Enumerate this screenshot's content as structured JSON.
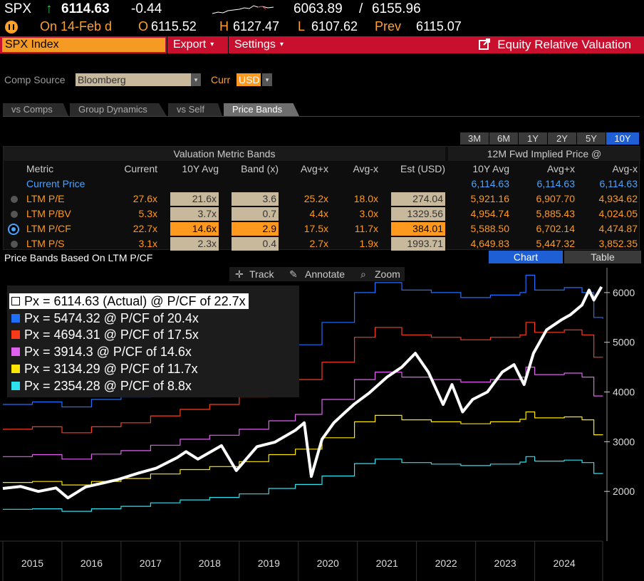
{
  "quote": {
    "ticker": "SPX",
    "arrow": "↑",
    "last": "6114.63",
    "change": "-0.44",
    "range_low": "6063.89",
    "range_sep": "/",
    "range_high": "6155.96",
    "date_label": "On 14-Feb d",
    "open_label": "O",
    "open": "6115.52",
    "high_label": "H",
    "high": "6127.47",
    "low_label": "L",
    "low": "6107.62",
    "prev_label": "Prev",
    "prev": "6115.07"
  },
  "cmdbar": {
    "security": "SPX Index",
    "export": "Export",
    "settings": "Settings",
    "function_title": "Equity Relative Valuation"
  },
  "filters": {
    "comp_source_label": "Comp Source",
    "comp_source_value": "Bloomberg",
    "curr_label": "Curr",
    "curr_value": "USD"
  },
  "tabs": [
    "vs Comps",
    "Group Dynamics",
    "vs Self",
    "Price Bands"
  ],
  "periods": [
    "3M",
    "6M",
    "1Y",
    "2Y",
    "5Y",
    "10Y"
  ],
  "table": {
    "group_header_left": "Valuation Metric Bands",
    "group_header_right": "12M Fwd Implied Price @",
    "columns": [
      "Metric",
      "Current",
      "10Y Avg",
      "Band (x)",
      "Avg+x",
      "Avg-x",
      "Est (USD)",
      "10Y Avg",
      "Avg+x",
      "Avg-x"
    ],
    "current_price": {
      "label": "Current Price",
      "v1": "6,114.63",
      "v2": "6,114.63",
      "v3": "6,114.63"
    },
    "rows": [
      {
        "metric": "LTM P/E",
        "current": "27.6x",
        "avg": "21.6x",
        "band": "3.6",
        "avg_plus": "25.2x",
        "avg_minus": "18.0x",
        "est": "274.04",
        "p_avg": "5,921.16",
        "p_plus": "6,907.70",
        "p_minus": "4,934.62"
      },
      {
        "metric": "LTM P/BV",
        "current": "5.3x",
        "avg": "3.7x",
        "band": "0.7",
        "avg_plus": "4.4x",
        "avg_minus": "3.0x",
        "est": "1329.56",
        "p_avg": "4,954.74",
        "p_plus": "5,885.43",
        "p_minus": "4,024.05"
      },
      {
        "metric": "LTM P/CF",
        "current": "22.7x",
        "avg": "14.6x",
        "band": "2.9",
        "avg_plus": "17.5x",
        "avg_minus": "11.7x",
        "est": "384.01",
        "p_avg": "5,588.50",
        "p_plus": "6,702.14",
        "p_minus": "4,474.87"
      },
      {
        "metric": "LTM P/S",
        "current": "3.1x",
        "avg": "2.3x",
        "band": "0.4",
        "avg_plus": "2.7x",
        "avg_minus": "1.9x",
        "est": "1993.71",
        "p_avg": "4,649.83",
        "p_plus": "5,447.32",
        "p_minus": "3,852.35"
      }
    ]
  },
  "section": {
    "title": "Price Bands Based On LTM P/CF",
    "chart_btn": "Chart",
    "table_btn": "Table"
  },
  "chart_tools": {
    "track": "Track",
    "annotate": "Annotate",
    "zoom": "Zoom"
  },
  "legend": [
    {
      "text": "Px = 6114.63 (Actual) @ P/CF of 22.7x",
      "color": "#ffffff"
    },
    {
      "text": "Px = 5474.32 @ P/CF of 20.4x",
      "color": "#1f6fff"
    },
    {
      "text": "Px = 4694.31 @ P/CF of 17.5x",
      "color": "#ff3a1a"
    },
    {
      "text": "Px = 3914.3 @ P/CF of 14.6x",
      "color": "#e060f0"
    },
    {
      "text": "Px = 3134.29 @ P/CF of 11.7x",
      "color": "#ffe600"
    },
    {
      "text": "Px = 2354.28 @ P/CF of 8.8x",
      "color": "#2ee0f0"
    }
  ],
  "chart_data": {
    "type": "line",
    "x_ticks": [
      "2015",
      "2016",
      "2017",
      "2018",
      "2019",
      "2020",
      "2021",
      "2022",
      "2023",
      "2024"
    ],
    "y_ticks": [
      2000,
      3000,
      4000,
      5000,
      6000
    ],
    "ylim": [
      1000,
      6500
    ],
    "xlim": [
      2015.0,
      2025.15
    ],
    "series": [
      {
        "name": "Px = 6114.63 (Actual) @ P/CF of 22.7x",
        "color": "#ffffff",
        "step": false,
        "points": [
          [
            2015.0,
            2060
          ],
          [
            2015.3,
            2100
          ],
          [
            2015.6,
            2000
          ],
          [
            2015.9,
            2070
          ],
          [
            2016.1,
            1870
          ],
          [
            2016.4,
            2090
          ],
          [
            2016.7,
            2170
          ],
          [
            2016.95,
            2240
          ],
          [
            2017.3,
            2370
          ],
          [
            2017.6,
            2470
          ],
          [
            2017.95,
            2680
          ],
          [
            2018.1,
            2800
          ],
          [
            2018.3,
            2650
          ],
          [
            2018.7,
            2920
          ],
          [
            2018.95,
            2420
          ],
          [
            2019.3,
            2900
          ],
          [
            2019.6,
            2990
          ],
          [
            2019.95,
            3230
          ],
          [
            2020.1,
            3380
          ],
          [
            2020.22,
            2300
          ],
          [
            2020.4,
            3050
          ],
          [
            2020.6,
            3380
          ],
          [
            2020.8,
            3600
          ],
          [
            2020.95,
            3760
          ],
          [
            2021.2,
            3980
          ],
          [
            2021.5,
            4300
          ],
          [
            2021.75,
            4500
          ],
          [
            2021.98,
            4780
          ],
          [
            2022.2,
            4400
          ],
          [
            2022.45,
            3750
          ],
          [
            2022.6,
            4150
          ],
          [
            2022.78,
            3600
          ],
          [
            2022.95,
            3850
          ],
          [
            2023.2,
            4000
          ],
          [
            2023.45,
            4400
          ],
          [
            2023.65,
            4550
          ],
          [
            2023.82,
            4150
          ],
          [
            2023.98,
            4780
          ],
          [
            2024.2,
            5250
          ],
          [
            2024.45,
            5450
          ],
          [
            2024.6,
            5550
          ],
          [
            2024.8,
            5750
          ],
          [
            2024.92,
            6050
          ],
          [
            2025.0,
            5850
          ],
          [
            2025.13,
            6114
          ]
        ]
      },
      {
        "name": "Px = 5474.32 @ P/CF of 20.4x",
        "color": "#1f6fff",
        "step": true,
        "points": [
          [
            2015.0,
            3750
          ],
          [
            2015.5,
            3800
          ],
          [
            2016.0,
            3700
          ],
          [
            2016.5,
            3850
          ],
          [
            2017.0,
            3900
          ],
          [
            2017.5,
            4100
          ],
          [
            2018.0,
            4250
          ],
          [
            2018.5,
            4350
          ],
          [
            2019.0,
            4550
          ],
          [
            2019.5,
            4750
          ],
          [
            2019.95,
            4950
          ],
          [
            2020.4,
            5400
          ],
          [
            2020.95,
            6000
          ],
          [
            2021.3,
            6200
          ],
          [
            2021.75,
            6050
          ],
          [
            2022.25,
            6000
          ],
          [
            2022.75,
            5900
          ],
          [
            2023.25,
            5950
          ],
          [
            2023.75,
            6000
          ],
          [
            2023.85,
            6350
          ],
          [
            2024.0,
            6050
          ],
          [
            2024.5,
            6100
          ],
          [
            2024.8,
            6000
          ],
          [
            2025.0,
            5500
          ],
          [
            2025.15,
            5474
          ]
        ]
      },
      {
        "name": "Px = 4694.31 @ P/CF of 17.5x",
        "color": "#ff3a1a",
        "step": true,
        "points": [
          [
            2015.0,
            3250
          ],
          [
            2015.5,
            3300
          ],
          [
            2016.0,
            3180
          ],
          [
            2016.5,
            3300
          ],
          [
            2017.0,
            3380
          ],
          [
            2017.5,
            3520
          ],
          [
            2018.0,
            3650
          ],
          [
            2018.5,
            3750
          ],
          [
            2019.0,
            3900
          ],
          [
            2019.5,
            4100
          ],
          [
            2019.95,
            4250
          ],
          [
            2020.4,
            4600
          ],
          [
            2020.95,
            5100
          ],
          [
            2021.3,
            5300
          ],
          [
            2021.75,
            5150
          ],
          [
            2022.25,
            5100
          ],
          [
            2022.75,
            5050
          ],
          [
            2023.25,
            5100
          ],
          [
            2023.75,
            5150
          ],
          [
            2023.85,
            5400
          ],
          [
            2024.0,
            5200
          ],
          [
            2024.5,
            5250
          ],
          [
            2024.8,
            5150
          ],
          [
            2025.0,
            4700
          ],
          [
            2025.15,
            4694
          ]
        ]
      },
      {
        "name": "Px = 3914.3 @ P/CF of 14.6x",
        "color": "#e060f0",
        "step": true,
        "points": [
          [
            2015.0,
            2700
          ],
          [
            2015.5,
            2740
          ],
          [
            2016.0,
            2650
          ],
          [
            2016.5,
            2750
          ],
          [
            2017.0,
            2820
          ],
          [
            2017.5,
            2930
          ],
          [
            2018.0,
            3050
          ],
          [
            2018.5,
            3130
          ],
          [
            2019.0,
            3250
          ],
          [
            2019.5,
            3420
          ],
          [
            2019.95,
            3550
          ],
          [
            2020.4,
            3850
          ],
          [
            2020.95,
            4250
          ],
          [
            2021.3,
            4400
          ],
          [
            2021.75,
            4300
          ],
          [
            2022.25,
            4250
          ],
          [
            2022.75,
            4200
          ],
          [
            2023.25,
            4250
          ],
          [
            2023.75,
            4300
          ],
          [
            2023.85,
            4500
          ],
          [
            2024.0,
            4350
          ],
          [
            2024.5,
            4380
          ],
          [
            2024.8,
            4300
          ],
          [
            2025.0,
            3920
          ],
          [
            2025.15,
            3914
          ]
        ]
      },
      {
        "name": "Px = 3134.29 @ P/CF of 11.7x",
        "color": "#ffe600",
        "step": true,
        "points": [
          [
            2015.0,
            2180
          ],
          [
            2015.5,
            2200
          ],
          [
            2016.0,
            2130
          ],
          [
            2016.5,
            2200
          ],
          [
            2017.0,
            2260
          ],
          [
            2017.5,
            2350
          ],
          [
            2018.0,
            2440
          ],
          [
            2018.5,
            2500
          ],
          [
            2019.0,
            2600
          ],
          [
            2019.5,
            2740
          ],
          [
            2019.95,
            2850
          ],
          [
            2020.4,
            3080
          ],
          [
            2020.95,
            3400
          ],
          [
            2021.3,
            3530
          ],
          [
            2021.75,
            3440
          ],
          [
            2022.25,
            3400
          ],
          [
            2022.75,
            3360
          ],
          [
            2023.25,
            3400
          ],
          [
            2023.75,
            3450
          ],
          [
            2023.85,
            3600
          ],
          [
            2024.0,
            3480
          ],
          [
            2024.5,
            3500
          ],
          [
            2024.8,
            3440
          ],
          [
            2025.0,
            3140
          ],
          [
            2025.15,
            3134
          ]
        ]
      },
      {
        "name": "Px = 2354.28 @ P/CF of 8.8x",
        "color": "#2ee0f0",
        "step": true,
        "points": [
          [
            2015.0,
            1640
          ],
          [
            2015.5,
            1650
          ],
          [
            2016.0,
            1600
          ],
          [
            2016.5,
            1650
          ],
          [
            2017.0,
            1700
          ],
          [
            2017.5,
            1770
          ],
          [
            2018.0,
            1830
          ],
          [
            2018.5,
            1880
          ],
          [
            2019.0,
            1950
          ],
          [
            2019.5,
            2060
          ],
          [
            2019.95,
            2140
          ],
          [
            2020.4,
            2310
          ],
          [
            2020.95,
            2560
          ],
          [
            2021.3,
            2650
          ],
          [
            2021.75,
            2580
          ],
          [
            2022.25,
            2550
          ],
          [
            2022.75,
            2520
          ],
          [
            2023.25,
            2550
          ],
          [
            2023.75,
            2590
          ],
          [
            2023.85,
            2700
          ],
          [
            2024.0,
            2610
          ],
          [
            2024.5,
            2630
          ],
          [
            2024.8,
            2580
          ],
          [
            2025.0,
            2360
          ],
          [
            2025.15,
            2354
          ]
        ]
      }
    ]
  }
}
